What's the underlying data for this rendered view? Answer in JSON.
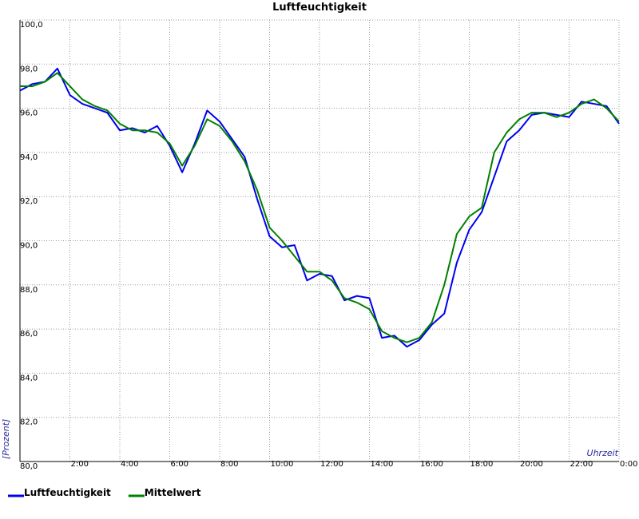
{
  "chart_data": {
    "type": "line",
    "title": "Luftfeuchtigkeit",
    "y_label": "[Prozent]",
    "x_label": "Uhrzeit",
    "x": [
      0,
      0.5,
      1,
      1.5,
      2,
      2.5,
      3,
      3.5,
      4,
      4.5,
      5,
      5.5,
      6,
      6.5,
      7,
      7.5,
      8,
      8.5,
      9,
      9.5,
      10,
      10.5,
      11,
      11.5,
      12,
      12.5,
      13,
      13.5,
      14,
      14.5,
      15,
      15.5,
      16,
      16.5,
      17,
      17.5,
      18,
      18.5,
      19,
      19.5,
      20,
      20.5,
      21,
      21.5,
      22,
      22.5,
      23,
      23.5,
      24
    ],
    "series": [
      {
        "name": "Luftfeuchtigkeit",
        "color": "#0000ee",
        "values": [
          96.8,
          97.1,
          97.2,
          97.8,
          96.6,
          96.2,
          96.0,
          95.8,
          95.0,
          95.1,
          94.9,
          95.2,
          94.3,
          93.1,
          94.4,
          95.9,
          95.4,
          94.6,
          93.8,
          91.9,
          90.2,
          89.7,
          89.8,
          88.2,
          88.5,
          88.4,
          87.3,
          87.5,
          87.4,
          85.6,
          85.7,
          85.2,
          85.5,
          86.2,
          86.7,
          89.0,
          90.5,
          91.3,
          92.9,
          94.5,
          95.0,
          95.7,
          95.8,
          95.7,
          95.6,
          96.3,
          96.2,
          96.1,
          95.3
        ]
      },
      {
        "name": "Mittelwert",
        "color": "#008000",
        "values": [
          97.0,
          97.0,
          97.2,
          97.6,
          97.0,
          96.4,
          96.1,
          95.9,
          95.3,
          95.0,
          95.0,
          94.9,
          94.4,
          93.4,
          94.3,
          95.5,
          95.2,
          94.5,
          93.6,
          92.3,
          90.6,
          90.0,
          89.3,
          88.6,
          88.6,
          88.2,
          87.4,
          87.2,
          86.9,
          85.9,
          85.6,
          85.4,
          85.6,
          86.3,
          88.0,
          90.3,
          91.1,
          91.5,
          94.0,
          94.9,
          95.5,
          95.8,
          95.8,
          95.6,
          95.8,
          96.2,
          96.4,
          96.0,
          95.4
        ]
      }
    ],
    "xlim": [
      0,
      24
    ],
    "xticks": [
      {
        "value": 2,
        "label": "2:00"
      },
      {
        "value": 4,
        "label": "4:00"
      },
      {
        "value": 6,
        "label": "6:00"
      },
      {
        "value": 8,
        "label": "8:00"
      },
      {
        "value": 10,
        "label": "10:00"
      },
      {
        "value": 12,
        "label": "12:00"
      },
      {
        "value": 14,
        "label": "14:00"
      },
      {
        "value": 16,
        "label": "16:00"
      },
      {
        "value": 18,
        "label": "18:00"
      },
      {
        "value": 20,
        "label": "20:00"
      },
      {
        "value": 22,
        "label": "22:00"
      },
      {
        "value": 24,
        "label": "0:00"
      }
    ],
    "ylim": [
      80,
      100
    ],
    "yticks": [
      {
        "value": 80,
        "label": "80,0"
      },
      {
        "value": 82,
        "label": "82,0"
      },
      {
        "value": 84,
        "label": "84,0"
      },
      {
        "value": 86,
        "label": "86,0"
      },
      {
        "value": 88,
        "label": "88,0"
      },
      {
        "value": 90,
        "label": "90,0"
      },
      {
        "value": 92,
        "label": "92,0"
      },
      {
        "value": 94,
        "label": "94,0"
      },
      {
        "value": 96,
        "label": "96,0"
      },
      {
        "value": 98,
        "label": "98,0"
      },
      {
        "value": 100,
        "label": "100,0"
      }
    ],
    "grid": true,
    "legend": "bottom"
  }
}
